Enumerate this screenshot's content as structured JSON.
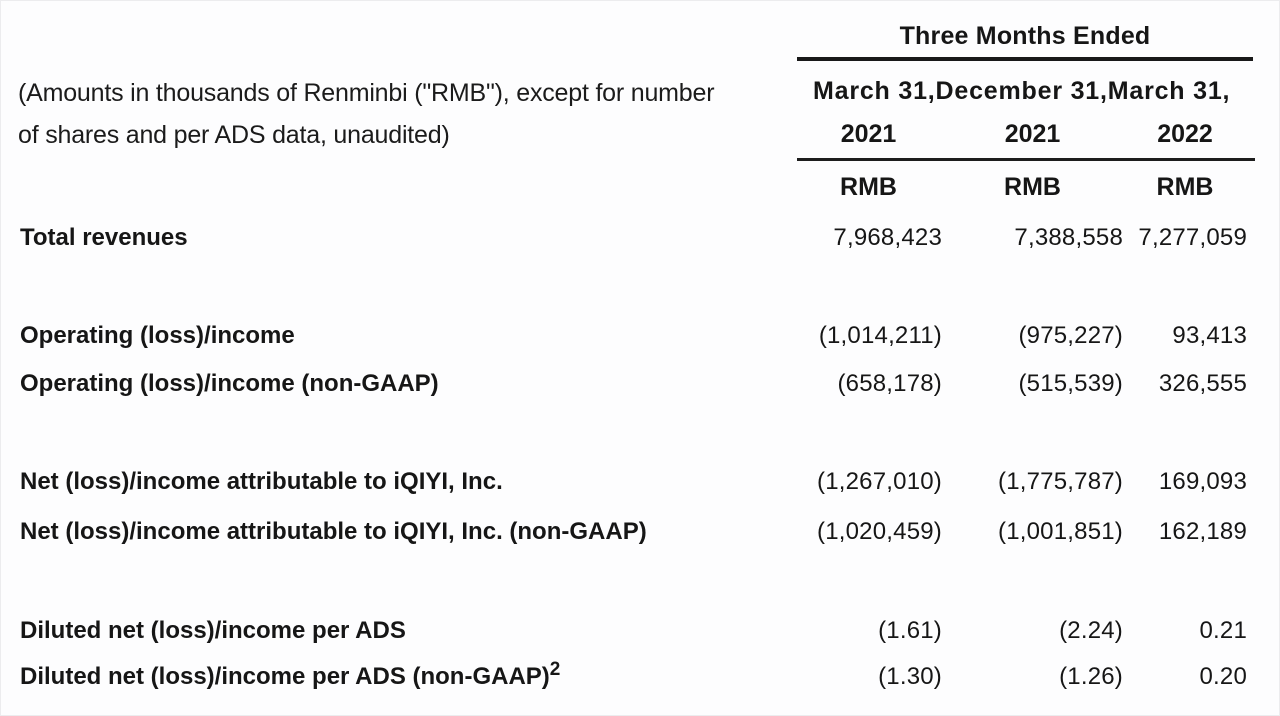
{
  "note": {
    "line1": "(Amounts in thousands of Renminbi (\"RMB\"), except for number",
    "line2": "of shares and per ADS data, unaudited)"
  },
  "header": {
    "group_title": "Three Months Ended",
    "columns": [
      {
        "date": "March 31,",
        "year": "2021",
        "unit": "RMB"
      },
      {
        "date": "December 31,",
        "year": "2021",
        "unit": "RMB"
      },
      {
        "date": "March 31,",
        "year": "2022",
        "unit": "RMB"
      }
    ]
  },
  "rows": [
    {
      "label": "Total revenues",
      "values": [
        "7,968,423",
        "7,388,558",
        "7,277,059"
      ]
    },
    {
      "label": "Operating (loss)/income",
      "values": [
        "(1,014,211)",
        "(975,227)",
        "93,413"
      ]
    },
    {
      "label": "Operating (loss)/income (non-GAAP)",
      "values": [
        "(658,178)",
        "(515,539)",
        "326,555"
      ]
    },
    {
      "label": "Net (loss)/income attributable to iQIYI, Inc.",
      "values": [
        "(1,267,010)",
        "(1,775,787)",
        "169,093"
      ]
    },
    {
      "label": "Net (loss)/income attributable to iQIYI, Inc. (non-GAAP)",
      "values": [
        "(1,020,459)",
        "(1,001,851)",
        "162,189"
      ]
    },
    {
      "label": "Diluted net (loss)/income per ADS",
      "values": [
        "(1.61)",
        "(2.24)",
        "0.21"
      ]
    },
    {
      "label": "Diluted net (loss)/income per ADS (non-GAAP)",
      "sup": "2",
      "values": [
        "(1.30)",
        "(1.26)",
        "0.20"
      ]
    }
  ],
  "colors": {
    "text": "#161616",
    "rule": "#191919",
    "background": "#fdfdfe"
  }
}
